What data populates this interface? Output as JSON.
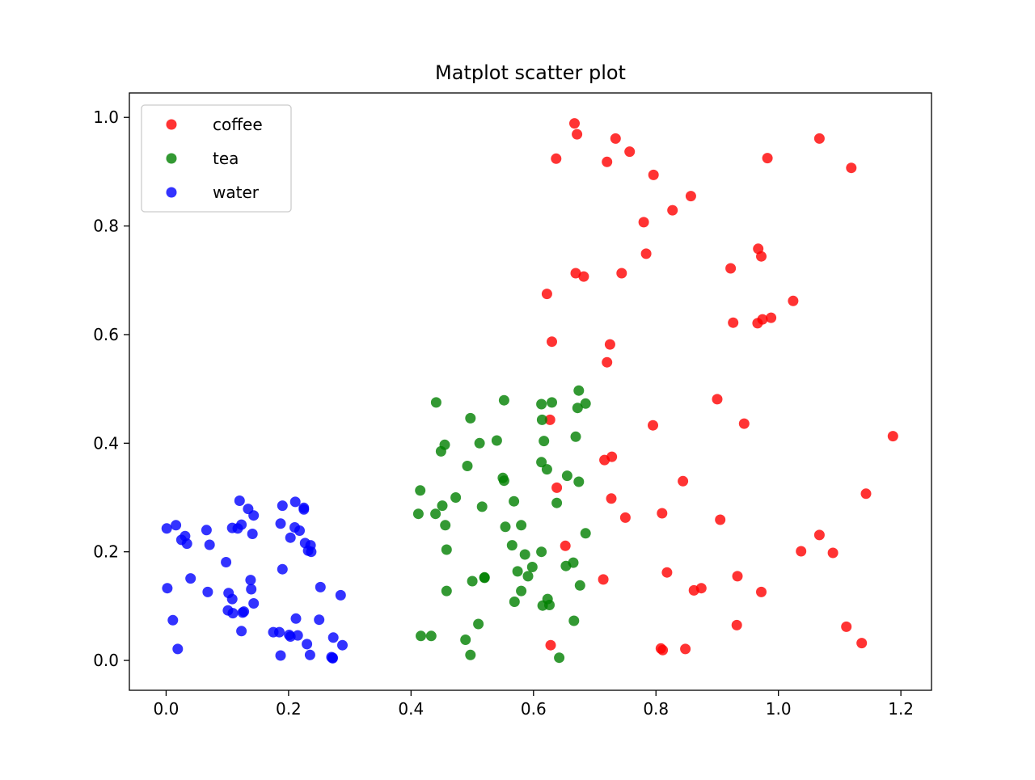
{
  "chart_data": {
    "type": "scatter",
    "title": "Matplot scatter plot",
    "xlabel": "",
    "ylabel": "",
    "xlim": [
      -0.06,
      1.25
    ],
    "ylim": [
      -0.055,
      1.045
    ],
    "xticks": [
      0.0,
      0.2,
      0.4,
      0.6,
      0.8,
      1.0,
      1.2
    ],
    "xtick_labels": [
      "0.0",
      "0.2",
      "0.4",
      "0.6",
      "0.8",
      "1.0",
      "1.2"
    ],
    "yticks": [
      0.0,
      0.2,
      0.4,
      0.6,
      0.8,
      1.0
    ],
    "ytick_labels": [
      "0.0",
      "0.2",
      "0.4",
      "0.6",
      "0.8",
      "1.0"
    ],
    "grid": false,
    "legend_position": "upper-left",
    "series": [
      {
        "name": "coffee",
        "color": "#ff0000",
        "points": [
          [
            0.667,
            0.989
          ],
          [
            0.671,
            0.969
          ],
          [
            0.734,
            0.961
          ],
          [
            0.757,
            0.937
          ],
          [
            0.637,
            0.924
          ],
          [
            0.72,
            0.918
          ],
          [
            1.067,
            0.961
          ],
          [
            1.119,
            0.907
          ],
          [
            0.982,
            0.925
          ],
          [
            0.796,
            0.894
          ],
          [
            0.857,
            0.855
          ],
          [
            0.827,
            0.829
          ],
          [
            0.78,
            0.807
          ],
          [
            0.784,
            0.749
          ],
          [
            0.967,
            0.758
          ],
          [
            0.972,
            0.744
          ],
          [
            0.669,
            0.713
          ],
          [
            0.682,
            0.707
          ],
          [
            0.744,
            0.713
          ],
          [
            0.922,
            0.722
          ],
          [
            0.622,
            0.675
          ],
          [
            1.024,
            0.662
          ],
          [
            0.926,
            0.622
          ],
          [
            0.966,
            0.621
          ],
          [
            0.974,
            0.628
          ],
          [
            0.988,
            0.631
          ],
          [
            0.63,
            0.587
          ],
          [
            0.725,
            0.582
          ],
          [
            0.72,
            0.549
          ],
          [
            0.9,
            0.481
          ],
          [
            0.944,
            0.436
          ],
          [
            0.627,
            0.443
          ],
          [
            0.795,
            0.433
          ],
          [
            1.187,
            0.413
          ],
          [
            0.716,
            0.369
          ],
          [
            0.728,
            0.375
          ],
          [
            0.844,
            0.33
          ],
          [
            0.638,
            0.318
          ],
          [
            1.143,
            0.307
          ],
          [
            0.727,
            0.298
          ],
          [
            0.75,
            0.263
          ],
          [
            0.81,
            0.271
          ],
          [
            0.905,
            0.259
          ],
          [
            1.067,
            0.231
          ],
          [
            0.652,
            0.211
          ],
          [
            1.037,
            0.201
          ],
          [
            1.089,
            0.198
          ],
          [
            0.818,
            0.162
          ],
          [
            0.714,
            0.149
          ],
          [
            0.933,
            0.155
          ],
          [
            0.862,
            0.129
          ],
          [
            0.874,
            0.133
          ],
          [
            0.972,
            0.126
          ],
          [
            0.932,
            0.065
          ],
          [
            1.111,
            0.062
          ],
          [
            1.136,
            0.032
          ],
          [
            0.628,
            0.028
          ],
          [
            0.808,
            0.022
          ],
          [
            0.811,
            0.019
          ],
          [
            0.848,
            0.021
          ]
        ]
      },
      {
        "name": "tea",
        "color": "#008000",
        "points": [
          [
            0.674,
            0.497
          ],
          [
            0.441,
            0.475
          ],
          [
            0.552,
            0.479
          ],
          [
            0.613,
            0.472
          ],
          [
            0.63,
            0.475
          ],
          [
            0.685,
            0.473
          ],
          [
            0.672,
            0.465
          ],
          [
            0.497,
            0.446
          ],
          [
            0.614,
            0.443
          ],
          [
            0.669,
            0.412
          ],
          [
            0.54,
            0.405
          ],
          [
            0.512,
            0.4
          ],
          [
            0.617,
            0.404
          ],
          [
            0.455,
            0.397
          ],
          [
            0.449,
            0.385
          ],
          [
            0.613,
            0.365
          ],
          [
            0.492,
            0.358
          ],
          [
            0.622,
            0.352
          ],
          [
            0.655,
            0.34
          ],
          [
            0.55,
            0.336
          ],
          [
            0.552,
            0.331
          ],
          [
            0.674,
            0.329
          ],
          [
            0.415,
            0.313
          ],
          [
            0.473,
            0.3
          ],
          [
            0.568,
            0.293
          ],
          [
            0.638,
            0.29
          ],
          [
            0.451,
            0.285
          ],
          [
            0.516,
            0.283
          ],
          [
            0.412,
            0.27
          ],
          [
            0.44,
            0.27
          ],
          [
            0.456,
            0.249
          ],
          [
            0.554,
            0.246
          ],
          [
            0.58,
            0.249
          ],
          [
            0.685,
            0.234
          ],
          [
            0.565,
            0.212
          ],
          [
            0.458,
            0.204
          ],
          [
            0.613,
            0.2
          ],
          [
            0.586,
            0.195
          ],
          [
            0.665,
            0.18
          ],
          [
            0.653,
            0.174
          ],
          [
            0.598,
            0.172
          ],
          [
            0.574,
            0.164
          ],
          [
            0.591,
            0.155
          ],
          [
            0.52,
            0.153
          ],
          [
            0.52,
            0.152
          ],
          [
            0.5,
            0.146
          ],
          [
            0.676,
            0.138
          ],
          [
            0.458,
            0.128
          ],
          [
            0.58,
            0.128
          ],
          [
            0.569,
            0.108
          ],
          [
            0.623,
            0.113
          ],
          [
            0.615,
            0.101
          ],
          [
            0.626,
            0.102
          ],
          [
            0.666,
            0.073
          ],
          [
            0.51,
            0.067
          ],
          [
            0.416,
            0.045
          ],
          [
            0.433,
            0.045
          ],
          [
            0.489,
            0.038
          ],
          [
            0.497,
            0.01
          ],
          [
            0.642,
            0.005
          ]
        ]
      },
      {
        "name": "water",
        "color": "#0000ff",
        "points": [
          [
            0.12,
            0.294
          ],
          [
            0.211,
            0.292
          ],
          [
            0.19,
            0.285
          ],
          [
            0.225,
            0.281
          ],
          [
            0.225,
            0.278
          ],
          [
            0.134,
            0.279
          ],
          [
            0.143,
            0.267
          ],
          [
            0.016,
            0.249
          ],
          [
            0.187,
            0.252
          ],
          [
            0.123,
            0.25
          ],
          [
            0.001,
            0.243
          ],
          [
            0.117,
            0.243
          ],
          [
            0.108,
            0.244
          ],
          [
            0.21,
            0.245
          ],
          [
            0.218,
            0.239
          ],
          [
            0.066,
            0.24
          ],
          [
            0.141,
            0.233
          ],
          [
            0.031,
            0.229
          ],
          [
            0.203,
            0.226
          ],
          [
            0.025,
            0.222
          ],
          [
            0.034,
            0.215
          ],
          [
            0.227,
            0.216
          ],
          [
            0.236,
            0.212
          ],
          [
            0.071,
            0.213
          ],
          [
            0.232,
            0.202
          ],
          [
            0.237,
            0.2
          ],
          [
            0.098,
            0.181
          ],
          [
            0.19,
            0.168
          ],
          [
            0.04,
            0.151
          ],
          [
            0.138,
            0.148
          ],
          [
            0.002,
            0.133
          ],
          [
            0.252,
            0.135
          ],
          [
            0.139,
            0.131
          ],
          [
            0.068,
            0.126
          ],
          [
            0.102,
            0.124
          ],
          [
            0.285,
            0.12
          ],
          [
            0.108,
            0.113
          ],
          [
            0.143,
            0.105
          ],
          [
            0.101,
            0.092
          ],
          [
            0.127,
            0.09
          ],
          [
            0.125,
            0.088
          ],
          [
            0.109,
            0.087
          ],
          [
            0.212,
            0.077
          ],
          [
            0.011,
            0.074
          ],
          [
            0.25,
            0.075
          ],
          [
            0.123,
            0.054
          ],
          [
            0.175,
            0.052
          ],
          [
            0.185,
            0.052
          ],
          [
            0.201,
            0.047
          ],
          [
            0.203,
            0.044
          ],
          [
            0.215,
            0.046
          ],
          [
            0.273,
            0.042
          ],
          [
            0.23,
            0.03
          ],
          [
            0.288,
            0.028
          ],
          [
            0.019,
            0.021
          ],
          [
            0.187,
            0.009
          ],
          [
            0.235,
            0.01
          ],
          [
            0.27,
            0.006
          ],
          [
            0.272,
            0.004
          ],
          [
            0.272,
            0.005
          ]
        ]
      }
    ]
  }
}
